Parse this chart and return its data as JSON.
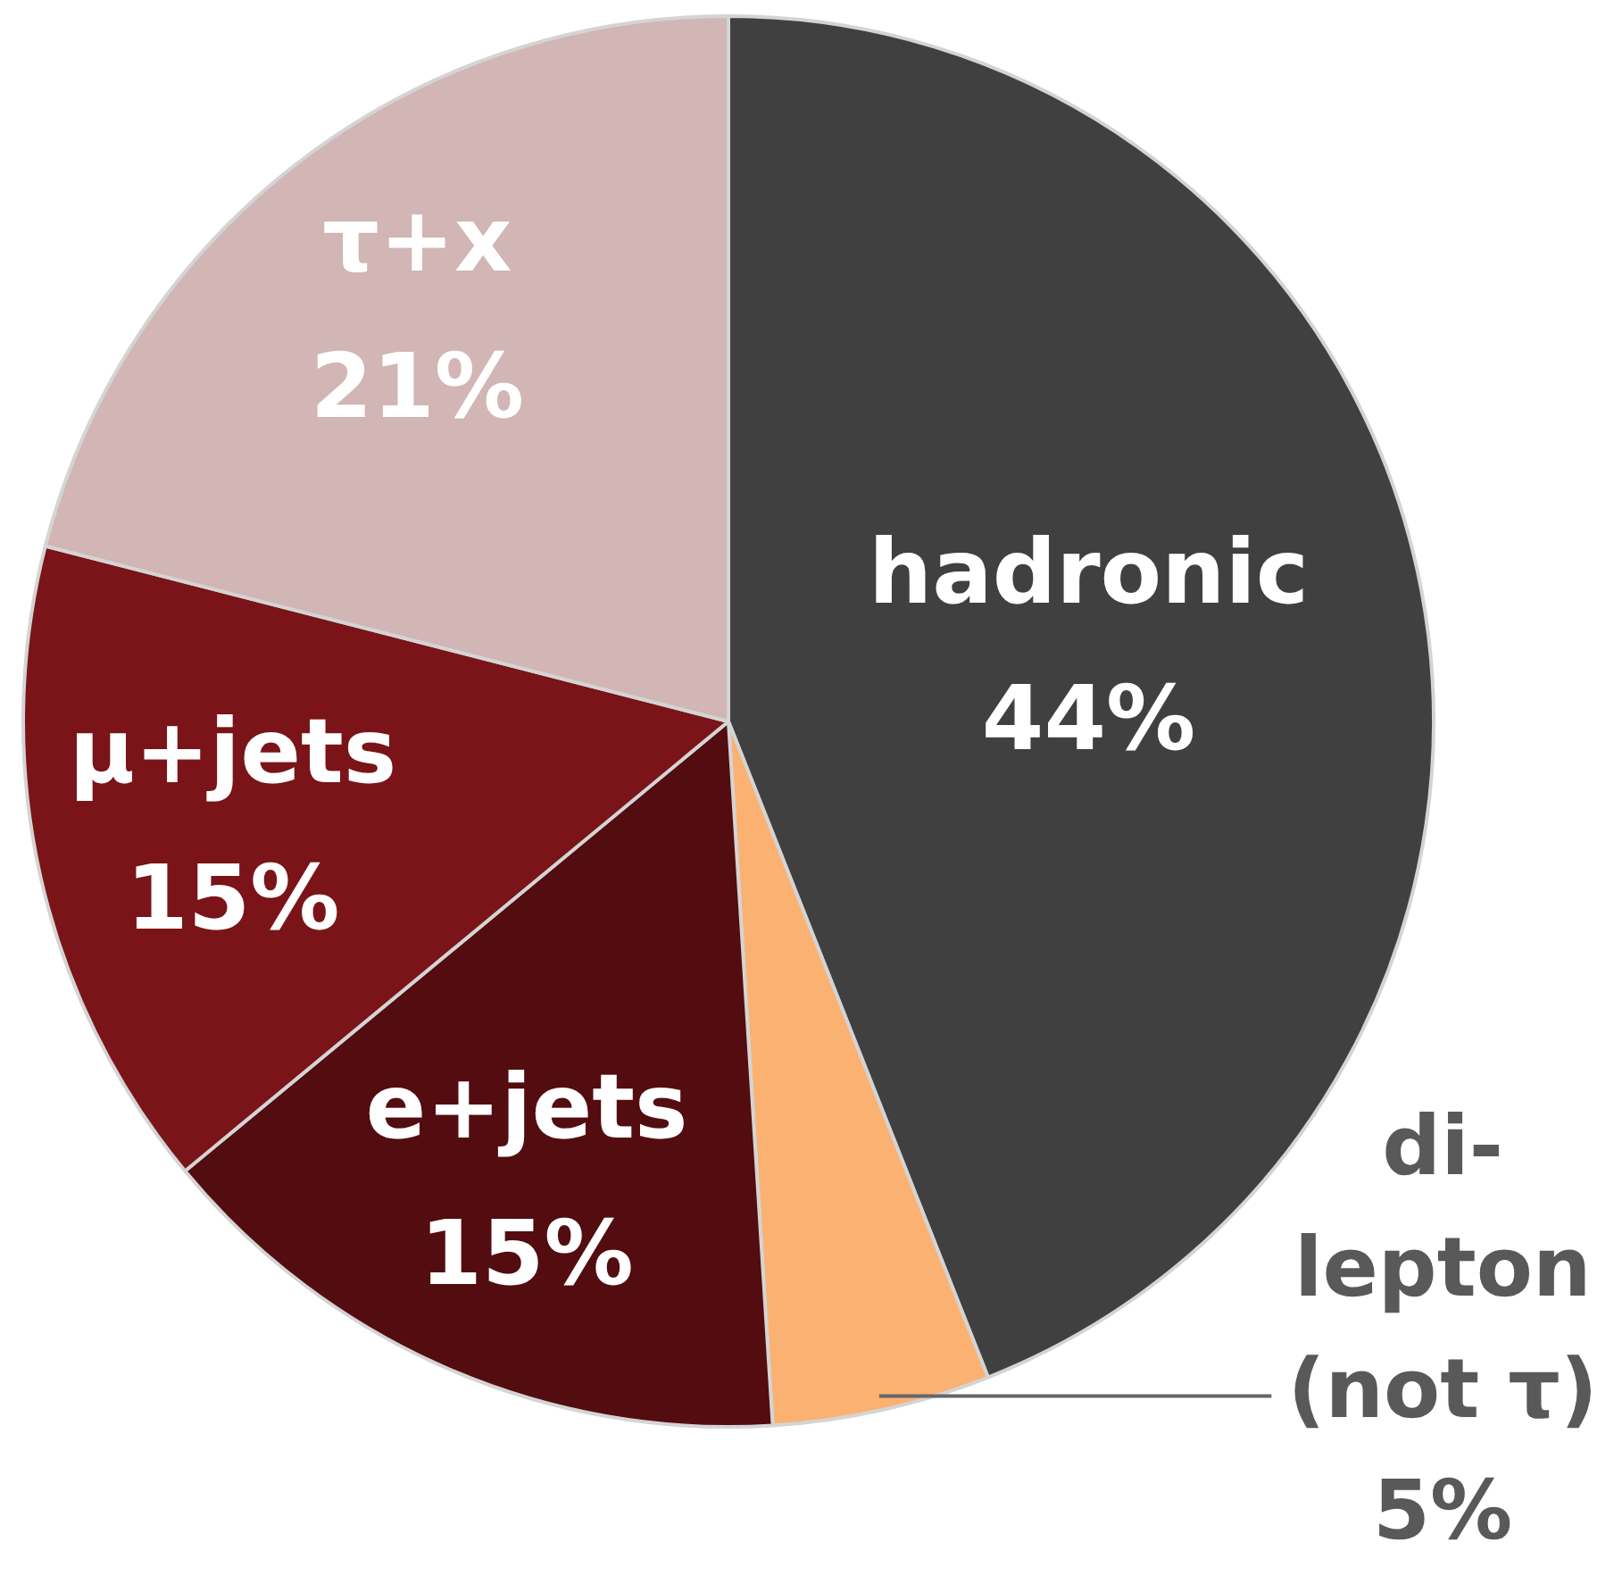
{
  "chart_data": {
    "type": "pie",
    "categories": [
      "hadronic",
      "di-lepton (not τ)",
      "e+jets",
      "μ+jets",
      "τ+x"
    ],
    "values": [
      44,
      5,
      15,
      15,
      21
    ],
    "colors": [
      "#404040",
      "#fbb171",
      "#530c0f",
      "#7a1418",
      "#d2b5b5"
    ],
    "value_labels": [
      "44%",
      "5%",
      "15%",
      "15%",
      "21%"
    ],
    "legend": false
  }
}
